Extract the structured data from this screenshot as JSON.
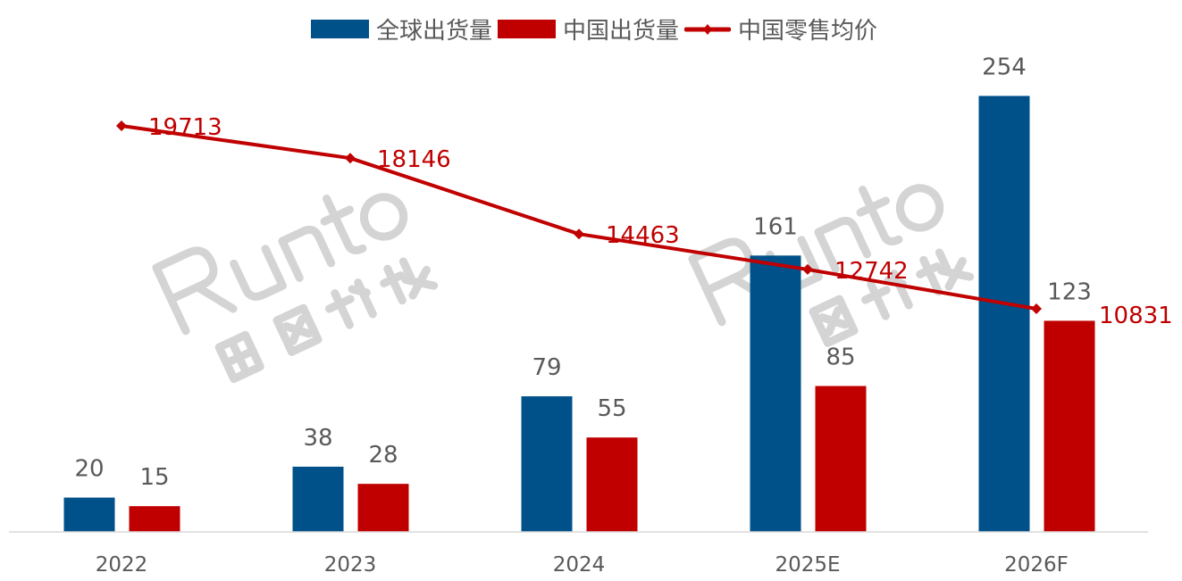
{
  "chart_data": {
    "type": "bar",
    "title": "",
    "categories": [
      "2022",
      "2023",
      "2024",
      "2025E",
      "2026F"
    ],
    "series": [
      {
        "name": "全球出货量",
        "type": "bar",
        "axis": "primary",
        "color": "#00508A",
        "values": [
          20,
          38,
          79,
          161,
          254
        ]
      },
      {
        "name": "中国出货量",
        "type": "bar",
        "axis": "primary",
        "color": "#C00000",
        "values": [
          15,
          28,
          55,
          85,
          123
        ]
      },
      {
        "name": "中国零售均价",
        "type": "line",
        "axis": "secondary",
        "color": "#C00000",
        "marker": "diamond",
        "values": [
          19713,
          18146,
          14463,
          12742,
          10831
        ]
      }
    ],
    "ylim": [
      0,
      300
    ],
    "y2lim": [
      0,
      25000
    ],
    "xlabel": "",
    "ylabel": "",
    "grid": false,
    "legend": "top-center"
  },
  "watermark": {
    "en": "Runto",
    "cn": "洛图科技"
  }
}
